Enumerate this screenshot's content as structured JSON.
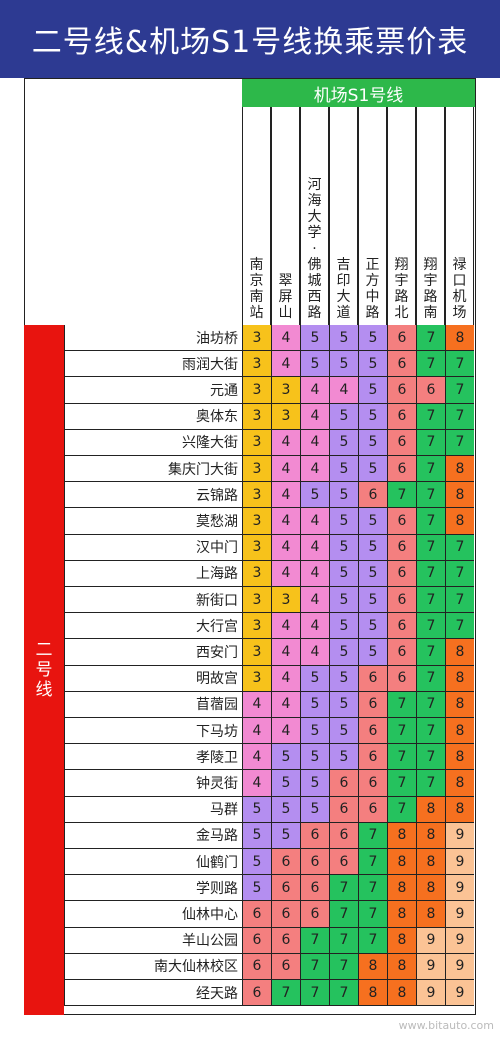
{
  "title": "二号线&机场S1号线换乘票价表",
  "s1_header": "机场S1号线",
  "line_label": "二号线",
  "columns": [
    "南京南站",
    "翠屏山",
    "河海大学·佛城西路",
    "吉印大道",
    "正方中路",
    "翔宇路北",
    "翔宇路南",
    "禄口机场"
  ],
  "price_colors": {
    "3": "#f7c21b",
    "4": "#f28ad2",
    "5": "#b48ef0",
    "6": "#f47f7f",
    "7": "#25c25e",
    "8": "#f6701f",
    "9": "#fbc395"
  },
  "rows": [
    {
      "station": "油坊桥",
      "prices": [
        3,
        4,
        5,
        5,
        5,
        6,
        7,
        8
      ]
    },
    {
      "station": "雨润大街",
      "prices": [
        3,
        4,
        5,
        5,
        5,
        6,
        7,
        7
      ]
    },
    {
      "station": "元通",
      "prices": [
        3,
        3,
        4,
        4,
        5,
        6,
        6,
        7
      ]
    },
    {
      "station": "奥体东",
      "prices": [
        3,
        3,
        4,
        5,
        5,
        6,
        7,
        7
      ]
    },
    {
      "station": "兴隆大街",
      "prices": [
        3,
        4,
        4,
        5,
        5,
        6,
        7,
        7
      ]
    },
    {
      "station": "集庆门大街",
      "prices": [
        3,
        4,
        4,
        5,
        5,
        6,
        7,
        8
      ]
    },
    {
      "station": "云锦路",
      "prices": [
        3,
        4,
        5,
        5,
        6,
        7,
        7,
        8
      ]
    },
    {
      "station": "莫愁湖",
      "prices": [
        3,
        4,
        4,
        5,
        5,
        6,
        7,
        8
      ]
    },
    {
      "station": "汉中门",
      "prices": [
        3,
        4,
        4,
        5,
        5,
        6,
        7,
        7
      ]
    },
    {
      "station": "上海路",
      "prices": [
        3,
        4,
        4,
        5,
        5,
        6,
        7,
        7
      ]
    },
    {
      "station": "新街口",
      "prices": [
        3,
        3,
        4,
        5,
        5,
        6,
        7,
        7
      ]
    },
    {
      "station": "大行宫",
      "prices": [
        3,
        4,
        4,
        5,
        5,
        6,
        7,
        7
      ]
    },
    {
      "station": "西安门",
      "prices": [
        3,
        4,
        4,
        5,
        5,
        6,
        7,
        8
      ]
    },
    {
      "station": "明故宫",
      "prices": [
        3,
        4,
        5,
        5,
        6,
        6,
        7,
        8
      ]
    },
    {
      "station": "苜蓿园",
      "prices": [
        4,
        4,
        5,
        5,
        6,
        7,
        7,
        8
      ]
    },
    {
      "station": "下马坊",
      "prices": [
        4,
        4,
        5,
        5,
        6,
        7,
        7,
        8
      ]
    },
    {
      "station": "孝陵卫",
      "prices": [
        4,
        5,
        5,
        5,
        6,
        7,
        7,
        8
      ]
    },
    {
      "station": "钟灵街",
      "prices": [
        4,
        5,
        5,
        6,
        6,
        7,
        7,
        8
      ]
    },
    {
      "station": "马群",
      "prices": [
        5,
        5,
        5,
        6,
        6,
        7,
        8,
        8
      ]
    },
    {
      "station": "金马路",
      "prices": [
        5,
        5,
        6,
        6,
        7,
        8,
        8,
        9
      ]
    },
    {
      "station": "仙鹤门",
      "prices": [
        5,
        6,
        6,
        6,
        7,
        8,
        8,
        9
      ]
    },
    {
      "station": "学则路",
      "prices": [
        5,
        6,
        6,
        7,
        7,
        8,
        8,
        9
      ]
    },
    {
      "station": "仙林中心",
      "prices": [
        6,
        6,
        6,
        7,
        7,
        8,
        8,
        9
      ]
    },
    {
      "station": "羊山公园",
      "prices": [
        6,
        6,
        7,
        7,
        7,
        8,
        9,
        9
      ]
    },
    {
      "station": "南大仙林校区",
      "prices": [
        6,
        6,
        7,
        7,
        8,
        8,
        9,
        9
      ]
    },
    {
      "station": "经天路",
      "prices": [
        6,
        7,
        7,
        7,
        8,
        8,
        9,
        9
      ]
    }
  ],
  "watermark": "www.bitauto.com"
}
